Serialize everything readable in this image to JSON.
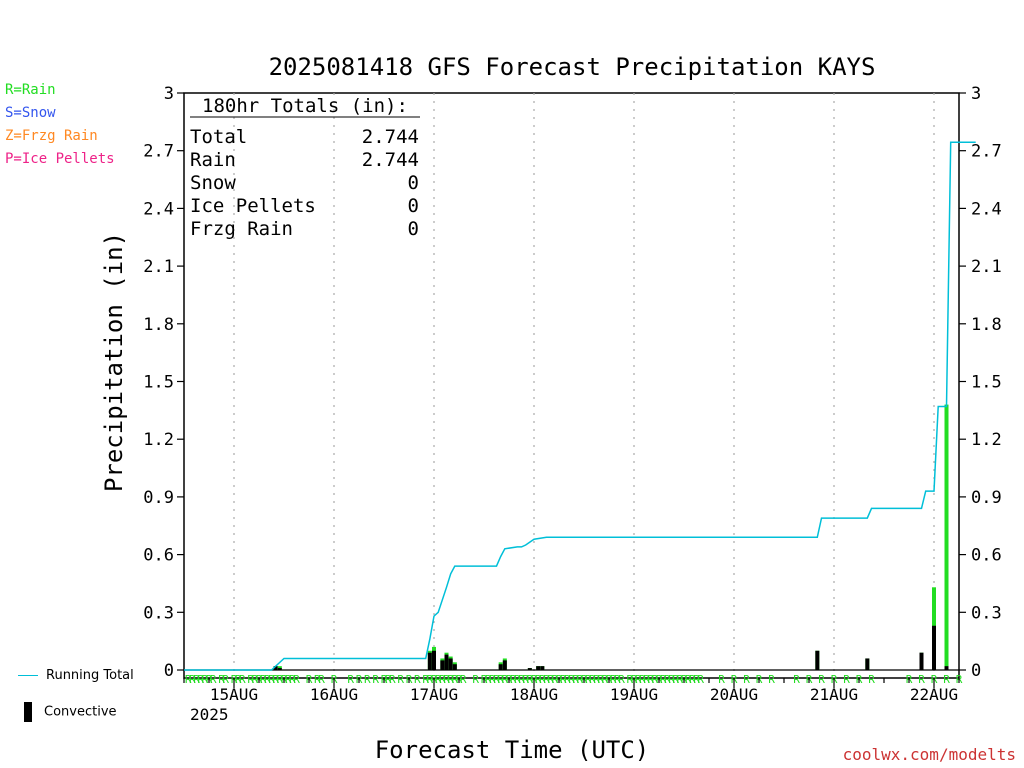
{
  "chart_data": {
    "type": "bar",
    "title": "2025081418 GFS Forecast Precipitation KAYS",
    "ylabel": "Precipitation (in)",
    "xlabel": "Forecast Time (UTC)",
    "ylim": [
      0,
      3
    ],
    "yticks": [
      "0",
      "0.3",
      "0.6",
      "0.9",
      "1.2",
      "1.5",
      "1.8",
      "2.1",
      "2.4",
      "2.7",
      "3"
    ],
    "xlim_hours": [
      -6,
      180
    ],
    "x_tick_labels": [
      {
        "hour": 6,
        "label": "15AUG"
      },
      {
        "hour": 30,
        "label": "16AUG"
      },
      {
        "hour": 54,
        "label": "17AUG"
      },
      {
        "hour": 78,
        "label": "18AUG"
      },
      {
        "hour": 102,
        "label": "19AUG"
      },
      {
        "hour": 126,
        "label": "20AUG"
      },
      {
        "hour": 150,
        "label": "21AUG"
      },
      {
        "hour": 174,
        "label": "22AUG"
      }
    ],
    "year_label": "2025",
    "grid": "vertical dotted at 00Z",
    "totals_header": "180hr Totals (in):",
    "totals": [
      {
        "label": "Total",
        "value": "2.744"
      },
      {
        "label": "Rain",
        "value": "2.744"
      },
      {
        "label": "Snow",
        "value": "0"
      },
      {
        "label": "Ice Pellets",
        "value": "0"
      },
      {
        "label": "Frzg Rain",
        "value": "0"
      }
    ],
    "running_total": {
      "name": "Running Total",
      "color": "#00bfd8",
      "points": [
        [
          -6,
          0
        ],
        [
          15,
          0
        ],
        [
          18,
          0.06
        ],
        [
          36,
          0.06
        ],
        [
          52,
          0.06
        ],
        [
          53,
          0.16
        ],
        [
          54,
          0.28
        ],
        [
          55,
          0.3
        ],
        [
          57,
          0.43
        ],
        [
          58,
          0.5
        ],
        [
          59,
          0.54
        ],
        [
          66,
          0.54
        ],
        [
          69,
          0.54
        ],
        [
          70,
          0.59
        ],
        [
          71,
          0.63
        ],
        [
          74,
          0.64
        ],
        [
          75,
          0.64
        ],
        [
          76,
          0.65
        ],
        [
          78,
          0.68
        ],
        [
          81,
          0.69
        ],
        [
          120,
          0.69
        ],
        [
          146,
          0.69
        ],
        [
          147,
          0.79
        ],
        [
          158,
          0.79
        ],
        [
          159,
          0.84
        ],
        [
          171,
          0.84
        ],
        [
          172,
          0.93
        ],
        [
          174,
          0.93
        ],
        [
          175,
          1.37
        ],
        [
          177,
          1.37
        ],
        [
          178,
          2.744
        ],
        [
          184,
          2.744
        ]
      ]
    },
    "precip_bars": {
      "name": "Rain",
      "color": "#22dd22",
      "points": [
        [
          16,
          0.02
        ],
        [
          17,
          0.02
        ],
        [
          53,
          0.1
        ],
        [
          54,
          0.12
        ],
        [
          56,
          0.06
        ],
        [
          57,
          0.09
        ],
        [
          58,
          0.07
        ],
        [
          59,
          0.04
        ],
        [
          70,
          0.04
        ],
        [
          71,
          0.06
        ],
        [
          77,
          0.01
        ],
        [
          79,
          0.02
        ],
        [
          80,
          0.02
        ],
        [
          146,
          0.1
        ],
        [
          158,
          0.06
        ],
        [
          171,
          0.09
        ],
        [
          174,
          0.43
        ],
        [
          177,
          1.38
        ]
      ]
    },
    "convective_bars": {
      "name": "Convective",
      "color": "#000000",
      "points": [
        [
          16,
          0.02
        ],
        [
          17,
          0.01
        ],
        [
          53,
          0.09
        ],
        [
          54,
          0.1
        ],
        [
          56,
          0.05
        ],
        [
          57,
          0.08
        ],
        [
          58,
          0.06
        ],
        [
          59,
          0.03
        ],
        [
          70,
          0.03
        ],
        [
          71,
          0.05
        ],
        [
          77,
          0.01
        ],
        [
          79,
          0.02
        ],
        [
          80,
          0.02
        ],
        [
          146,
          0.1
        ],
        [
          158,
          0.06
        ],
        [
          171,
          0.09
        ],
        [
          174,
          0.23
        ],
        [
          177,
          0.02
        ]
      ]
    },
    "ptype_markers": {
      "label": "R",
      "color": "#22dd22",
      "hours": [
        -5,
        -4,
        -3,
        -2,
        -1,
        0,
        1,
        3,
        4,
        6,
        7,
        8,
        10,
        11,
        12,
        13,
        14,
        15,
        16,
        17,
        18,
        19,
        20,
        21,
        24,
        26,
        27,
        30,
        34,
        36,
        38,
        40,
        42,
        43,
        44,
        46,
        48,
        50,
        52,
        53,
        54,
        55,
        56,
        57,
        58,
        59,
        60,
        61,
        64,
        66,
        67,
        68,
        69,
        70,
        71,
        72,
        73,
        74,
        75,
        76,
        77,
        78,
        79,
        80,
        81,
        82,
        83,
        84,
        85,
        86,
        87,
        88,
        89,
        90,
        91,
        92,
        93,
        94,
        95,
        96,
        97,
        98,
        99,
        101,
        102,
        103,
        104,
        105,
        106,
        107,
        108,
        109,
        110,
        111,
        112,
        113,
        114,
        115,
        116,
        117,
        118,
        123,
        126,
        129,
        132,
        135,
        141,
        144,
        147,
        150,
        153,
        156,
        159,
        168,
        171,
        174,
        177,
        180
      ]
    },
    "legend": [
      {
        "label": "R=Rain",
        "color": "#22dd22"
      },
      {
        "label": "S=Snow",
        "color": "#3355ee"
      },
      {
        "label": "Z=Frzg Rain",
        "color": "#ff8822"
      },
      {
        "label": "P=Ice Pellets",
        "color": "#ee2288"
      }
    ],
    "bottom_legend": {
      "running_total_label": "Running Total",
      "convective_label": "Convective"
    },
    "footer": "coolwx.com/modelts"
  }
}
